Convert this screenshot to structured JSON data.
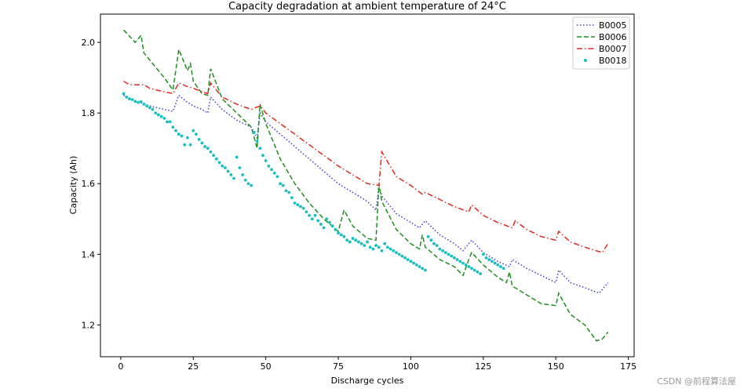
{
  "chart_data": {
    "type": "line",
    "title": "Capacity degradation at ambient temperature of 24°C",
    "xlabel": "Discharge cycles",
    "ylabel": "Capacity (Ah)",
    "xlim": [
      -7,
      177
    ],
    "ylim": [
      1.11,
      2.08
    ],
    "xticks": [
      0,
      25,
      50,
      75,
      100,
      125,
      150,
      175
    ],
    "yticks": [
      1.2,
      1.4,
      1.6,
      1.8,
      2.0
    ],
    "grid": false,
    "legend": "top-right",
    "series": [
      {
        "name": "B0005",
        "color": "#3b3bd6",
        "style": "dotted",
        "x": [
          1,
          5,
          10,
          15,
          18,
          20,
          23,
          25,
          28,
          30,
          31,
          35,
          40,
          45,
          47,
          48,
          50,
          55,
          60,
          65,
          70,
          75,
          77,
          80,
          85,
          88,
          89,
          90,
          95,
          100,
          103,
          105,
          110,
          115,
          118,
          120,
          121,
          125,
          130,
          134,
          135,
          140,
          145,
          150,
          151,
          155,
          160,
          165,
          168
        ],
        "values": [
          1.85,
          1.835,
          1.82,
          1.81,
          1.805,
          1.85,
          1.83,
          1.82,
          1.81,
          1.8,
          1.845,
          1.81,
          1.78,
          1.76,
          1.73,
          1.8,
          1.775,
          1.74,
          1.705,
          1.67,
          1.635,
          1.6,
          1.59,
          1.575,
          1.55,
          1.525,
          1.59,
          1.565,
          1.515,
          1.49,
          1.475,
          1.495,
          1.455,
          1.43,
          1.41,
          1.43,
          1.44,
          1.405,
          1.38,
          1.365,
          1.385,
          1.36,
          1.34,
          1.32,
          1.355,
          1.32,
          1.305,
          1.29,
          1.32
        ]
      },
      {
        "name": "B0006",
        "color": "#1f8f1f",
        "style": "dashed",
        "x": [
          1,
          5,
          7,
          8,
          10,
          15,
          18,
          20,
          23,
          24,
          25,
          28,
          30,
          31,
          35,
          40,
          45,
          47,
          48,
          50,
          55,
          60,
          65,
          70,
          75,
          77,
          80,
          85,
          88,
          89,
          90,
          95,
          100,
          103,
          104,
          105,
          110,
          115,
          118,
          120,
          121,
          125,
          130,
          133,
          134,
          135,
          140,
          145,
          150,
          151,
          155,
          160,
          164,
          166,
          168
        ],
        "values": [
          2.035,
          2.0,
          2.02,
          1.97,
          1.95,
          1.9,
          1.865,
          1.98,
          1.92,
          1.94,
          1.89,
          1.855,
          1.85,
          1.925,
          1.84,
          1.8,
          1.76,
          1.7,
          1.825,
          1.77,
          1.67,
          1.6,
          1.545,
          1.5,
          1.465,
          1.525,
          1.48,
          1.445,
          1.44,
          1.6,
          1.55,
          1.47,
          1.43,
          1.415,
          1.455,
          1.42,
          1.385,
          1.365,
          1.34,
          1.385,
          1.405,
          1.37,
          1.335,
          1.32,
          1.35,
          1.31,
          1.285,
          1.26,
          1.255,
          1.29,
          1.23,
          1.2,
          1.155,
          1.16,
          1.18
        ]
      },
      {
        "name": "B0007",
        "color": "#e0281e",
        "style": "dashdot",
        "x": [
          1,
          3,
          8,
          10,
          15,
          18,
          20,
          23,
          25,
          28,
          30,
          31,
          35,
          40,
          45,
          48,
          50,
          55,
          60,
          65,
          70,
          75,
          80,
          85,
          89,
          90,
          95,
          100,
          104,
          105,
          110,
          115,
          120,
          121,
          125,
          130,
          135,
          136,
          140,
          145,
          150,
          151,
          155,
          160,
          166,
          168
        ],
        "values": [
          1.89,
          1.88,
          1.88,
          1.87,
          1.86,
          1.855,
          1.885,
          1.875,
          1.87,
          1.86,
          1.855,
          1.885,
          1.845,
          1.825,
          1.81,
          1.82,
          1.8,
          1.77,
          1.74,
          1.71,
          1.68,
          1.65,
          1.625,
          1.6,
          1.595,
          1.69,
          1.62,
          1.595,
          1.57,
          1.575,
          1.555,
          1.535,
          1.52,
          1.54,
          1.51,
          1.49,
          1.475,
          1.495,
          1.47,
          1.45,
          1.44,
          1.465,
          1.435,
          1.42,
          1.405,
          1.43
        ]
      },
      {
        "name": "B0018",
        "color": "#17bfbf",
        "style": "points",
        "x": [
          1,
          2,
          3,
          4,
          5,
          6,
          7,
          8,
          9,
          10,
          11,
          12,
          13,
          14,
          15,
          16,
          17,
          18,
          19,
          20,
          21,
          22,
          23,
          24,
          25,
          26,
          27,
          28,
          29,
          30,
          31,
          32,
          33,
          34,
          35,
          36,
          37,
          38,
          39,
          40,
          41,
          42,
          43,
          44,
          45,
          46,
          47,
          48,
          49,
          50,
          51,
          52,
          53,
          54,
          55,
          56,
          57,
          58,
          59,
          60,
          61,
          62,
          63,
          64,
          65,
          66,
          67,
          68,
          69,
          70,
          71,
          72,
          73,
          74,
          75,
          76,
          77,
          78,
          79,
          80,
          81,
          82,
          83,
          84,
          85,
          86,
          87,
          88,
          89,
          90,
          91,
          92,
          93,
          94,
          95,
          96,
          97,
          98,
          99,
          100,
          101,
          102,
          103,
          104,
          105,
          106,
          107,
          108,
          109,
          110,
          111,
          112,
          113,
          114,
          115,
          116,
          117,
          118,
          119,
          120,
          121,
          122,
          123,
          124,
          125,
          126,
          127,
          128,
          129,
          130,
          131,
          132
        ],
        "values": [
          1.855,
          1.845,
          1.84,
          1.838,
          1.833,
          1.83,
          1.832,
          1.825,
          1.82,
          1.815,
          1.81,
          1.8,
          1.795,
          1.79,
          1.785,
          1.775,
          1.775,
          1.76,
          1.75,
          1.74,
          1.735,
          1.71,
          1.73,
          1.71,
          1.75,
          1.74,
          1.725,
          1.715,
          1.705,
          1.7,
          1.69,
          1.68,
          1.67,
          1.66,
          1.65,
          1.645,
          1.635,
          1.625,
          1.615,
          1.675,
          1.645,
          1.625,
          1.61,
          1.6,
          1.595,
          1.745,
          1.72,
          1.7,
          1.68,
          1.665,
          1.65,
          1.64,
          1.63,
          1.62,
          1.6,
          1.595,
          1.58,
          1.575,
          1.56,
          1.545,
          1.54,
          1.535,
          1.53,
          1.52,
          1.51,
          1.5,
          1.51,
          1.495,
          1.485,
          1.475,
          1.5,
          1.49,
          1.48,
          1.47,
          1.46,
          1.455,
          1.45,
          1.44,
          1.435,
          1.445,
          1.44,
          1.435,
          1.43,
          1.425,
          1.435,
          1.42,
          1.415,
          1.425,
          1.42,
          1.41,
          1.43,
          1.42,
          1.415,
          1.41,
          1.405,
          1.4,
          1.395,
          1.39,
          1.385,
          1.38,
          1.375,
          1.37,
          1.365,
          1.36,
          1.355,
          1.45,
          1.44,
          1.43,
          1.425,
          1.415,
          1.41,
          1.405,
          1.4,
          1.395,
          1.39,
          1.385,
          1.38,
          1.375,
          1.37,
          1.365,
          1.36,
          1.355,
          1.35,
          1.345,
          1.4,
          1.39,
          1.385,
          1.38,
          1.375,
          1.37,
          1.365,
          1.36
        ]
      }
    ]
  },
  "watermark": "CSDN @前程算法屋"
}
